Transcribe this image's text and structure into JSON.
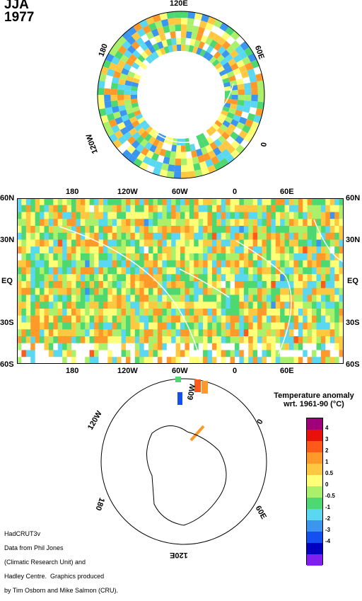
{
  "header": {
    "season": "JJA",
    "year": "1977"
  },
  "north_polar": {
    "labels": [
      "120E",
      "60E",
      "0",
      "120W",
      "180"
    ]
  },
  "tropical_map": {
    "top_lon_labels": [
      "180",
      "120W",
      "60W",
      "0",
      "60E"
    ],
    "bottom_lon_labels": [
      "180",
      "120W",
      "60W",
      "0",
      "60E"
    ],
    "lat_labels": [
      "60N",
      "30N",
      "EQ",
      "30S",
      "60S"
    ]
  },
  "south_polar": {
    "labels": [
      "60W",
      "0",
      "60E",
      "120E",
      "180",
      "120W"
    ]
  },
  "legend": {
    "title_line1": "Temperature anomaly",
    "title_line2": "wrt. 1961-90  (°C)",
    "levels": [
      "4",
      "3",
      "2",
      "1",
      "0.5",
      "0",
      "-0.5",
      "-1",
      "-2",
      "-3",
      "-4"
    ],
    "colors": [
      "#a0007a",
      "#e8100a",
      "#ff5a1a",
      "#ff9a2a",
      "#ffc840",
      "#ffff78",
      "#aaf06a",
      "#4ed872",
      "#5ad8f2",
      "#3c96f0",
      "#1450f0",
      "#0000c0",
      "#8020f0"
    ]
  },
  "credits": {
    "line1": "HadCRUT3v",
    "line2": "Data from Phil Jones",
    "line3": "(Climatic Research Unit) and",
    "line4": "Hadley Centre.  Graphics produced",
    "line5": "by Tim Osborn and Mike Salmon (CRU)."
  }
}
